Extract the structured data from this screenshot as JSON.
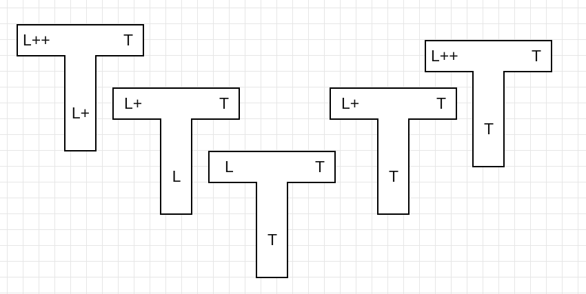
{
  "shapes": [
    {
      "left_label": "L++",
      "right_label": "T",
      "stem_label": "L+"
    },
    {
      "left_label": "L+",
      "right_label": "T",
      "stem_label": "L"
    },
    {
      "left_label": "L",
      "right_label": "T",
      "stem_label": "T"
    },
    {
      "left_label": "L+",
      "right_label": "T",
      "stem_label": "T"
    },
    {
      "left_label": "L++",
      "right_label": "T",
      "stem_label": "T"
    }
  ]
}
